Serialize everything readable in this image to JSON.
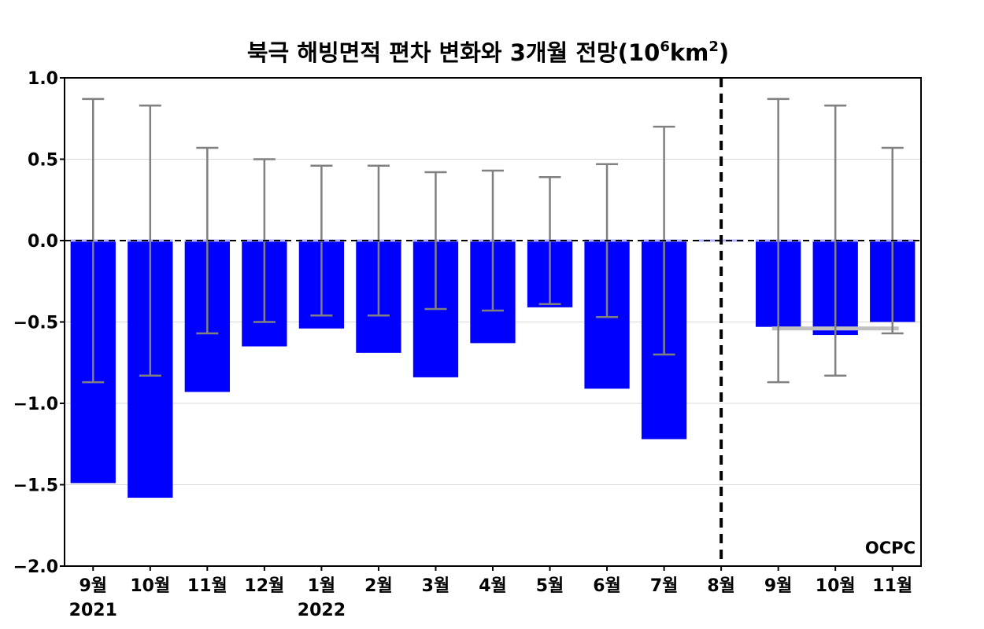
{
  "chart_data": {
    "type": "bar",
    "title": {
      "prefix": "북극 해빙면적 편차 변화와 3개월 전망(10",
      "sup1": "6",
      "mid": "km",
      "sup2": "2",
      "suffix": ")"
    },
    "xlabel": "",
    "ylabel": "",
    "ylim": [
      -2.0,
      1.0
    ],
    "yticks": [
      "1.0",
      "0.5",
      "0.0",
      "−0.5",
      "−1.0",
      "−1.5",
      "−2.0"
    ],
    "ytick_values": [
      1.0,
      0.5,
      0.0,
      -0.5,
      -1.0,
      -1.5,
      -2.0
    ],
    "grid": true,
    "categories": [
      "9월",
      "10월",
      "11월",
      "12월",
      "1월",
      "2월",
      "3월",
      "4월",
      "5월",
      "6월",
      "7월",
      "8월",
      "9월",
      "10월",
      "11월"
    ],
    "year_labels": [
      {
        "index": 0,
        "text": "2021"
      },
      {
        "index": 4,
        "text": "2022"
      }
    ],
    "values": [
      -1.49,
      -1.58,
      -0.93,
      -0.65,
      -0.54,
      -0.69,
      -0.84,
      -0.63,
      -0.41,
      -0.91,
      -1.22,
      0.0,
      -0.53,
      -0.58,
      -0.5
    ],
    "error_bars": [
      0.87,
      0.83,
      0.57,
      0.5,
      0.46,
      0.46,
      0.42,
      0.43,
      0.39,
      0.47,
      0.7,
      null,
      0.87,
      0.83,
      0.57
    ],
    "forecast_line": {
      "from_index": 12,
      "to_index": 14,
      "value": -0.54,
      "color": "#c0c0c0"
    },
    "divider_after_index": 11,
    "bar_color": "#0000ff",
    "error_bar_color": "#808080",
    "logo": "OCPC"
  }
}
